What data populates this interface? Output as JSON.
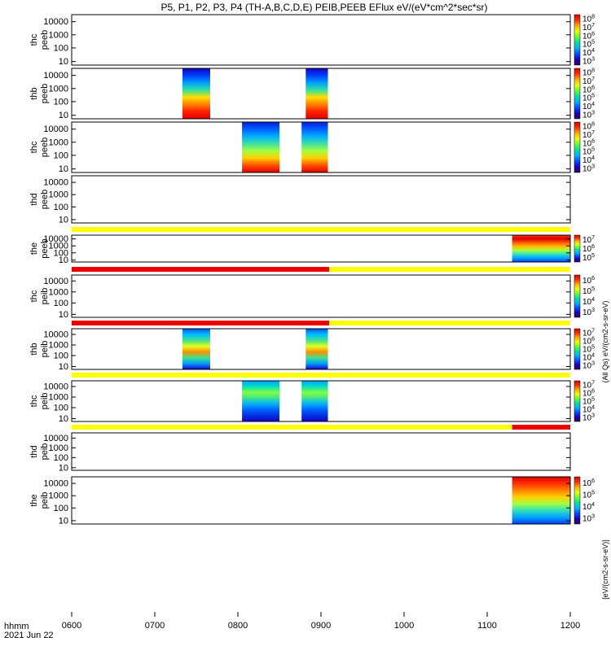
{
  "chart_data": {
    "type": "heatmap",
    "title": "P5, P1, P2, P3, P4 (TH-A,B,C,D,E) PEIB,PEEB EFlux eV/(eV*cm^2*sec*sr)",
    "xlabel": "hhmm",
    "date_label": "2021 Jun 22",
    "x_ticks": [
      "0600",
      "0700",
      "0800",
      "0900",
      "1000",
      "1100",
      "1200"
    ],
    "x_range": [
      "0600",
      "1200"
    ],
    "y_scale": "log",
    "y_ticks": [
      "10",
      "100",
      "1000",
      "10000"
    ],
    "colorbar_palette": [
      "#3a0050",
      "#1a00c8",
      "#0050ff",
      "#00b0ff",
      "#00e0a0",
      "#60ff30",
      "#e8ff00",
      "#ffb000",
      "#ff3000",
      "#e00000"
    ],
    "colorbar_label_right": "(All Qs) eV/(cm2-s-sr-eV)",
    "colorbar_label_bottom": "[eV/(cm2-s-sr-eV)]",
    "panels": [
      {
        "label_top": "thc",
        "label_bottom": "peeb",
        "colorbar_ticks": [
          "10^8",
          "10^7",
          "10^6",
          "10^5",
          "10^4",
          "10^3"
        ],
        "data_intervals": [],
        "quality_bar": null
      },
      {
        "label_top": "thb",
        "label_bottom": "peeb",
        "colorbar_ticks": [
          "10^8",
          "10^7",
          "10^6",
          "10^5",
          "10^4",
          "10^3"
        ],
        "data_intervals": [
          {
            "start": "0720",
            "end": "0740",
            "profile": "peeb_b"
          },
          {
            "start": "0849",
            "end": "0905",
            "profile": "peeb_b"
          }
        ],
        "quality_bar": null
      },
      {
        "label_top": "thc",
        "label_bottom": "peeb",
        "colorbar_ticks": [
          "10^8",
          "10^7",
          "10^6",
          "10^5",
          "10^4",
          "10^3"
        ],
        "data_intervals": [
          {
            "start": "0803",
            "end": "0830",
            "profile": "peeb_c"
          },
          {
            "start": "0846",
            "end": "0905",
            "profile": "peeb_c"
          }
        ],
        "quality_bar": null
      },
      {
        "label_top": "thd",
        "label_bottom": "peeb",
        "colorbar_ticks": [],
        "data_intervals": [],
        "quality_bar": null
      },
      {
        "label_top": "the",
        "label_bottom": "peeb",
        "colorbar_ticks": [
          "10^7",
          "10^6",
          "10^5"
        ],
        "data_intervals": [
          {
            "start": "1118",
            "end": "1200",
            "profile": "peeb_e"
          }
        ],
        "quality_bar": [
          {
            "start": "0600",
            "end": "1200",
            "color": "#ffff00"
          }
        ]
      },
      {
        "label_top": "thc",
        "label_bottom": "peib",
        "colorbar_ticks": [
          "10^6",
          "10^5",
          "10^4",
          "10^3"
        ],
        "data_intervals": [],
        "quality_bar": [
          {
            "start": "0600",
            "end": "0906",
            "color": "#ee0000"
          },
          {
            "start": "0906",
            "end": "1200",
            "color": "#ffff00"
          }
        ]
      },
      {
        "label_top": "thb",
        "label_bottom": "peib",
        "colorbar_ticks": [
          "10^7",
          "10^6",
          "10^5",
          "10^4",
          "10^3"
        ],
        "data_intervals": [
          {
            "start": "0720",
            "end": "0740",
            "profile": "peib_b"
          },
          {
            "start": "0849",
            "end": "0905",
            "profile": "peib_b"
          }
        ],
        "quality_bar": [
          {
            "start": "0600",
            "end": "0906",
            "color": "#ee0000"
          },
          {
            "start": "0906",
            "end": "1200",
            "color": "#ffff00"
          }
        ]
      },
      {
        "label_top": "thc",
        "label_bottom": "peib",
        "colorbar_ticks": [
          "10^7",
          "10^6",
          "10^5",
          "10^4",
          "10^3"
        ],
        "data_intervals": [
          {
            "start": "0803",
            "end": "0830",
            "profile": "peib_c"
          },
          {
            "start": "0846",
            "end": "0905",
            "profile": "peib_c"
          }
        ],
        "quality_bar": [
          {
            "start": "0600",
            "end": "1200",
            "color": "#ffff00"
          }
        ]
      },
      {
        "label_top": "thd",
        "label_bottom": "peib",
        "colorbar_ticks": [],
        "data_intervals": [],
        "quality_bar": [
          {
            "start": "0600",
            "end": "1118",
            "color": "#ffff00"
          },
          {
            "start": "1118",
            "end": "1200",
            "color": "#ee0000"
          }
        ]
      },
      {
        "label_top": "the",
        "label_bottom": "peib",
        "colorbar_ticks": [
          "10^6",
          "10^5",
          "10^4",
          "10^3"
        ],
        "data_intervals": [
          {
            "start": "1118",
            "end": "1200",
            "profile": "peib_e"
          }
        ],
        "quality_bar": null
      }
    ]
  }
}
